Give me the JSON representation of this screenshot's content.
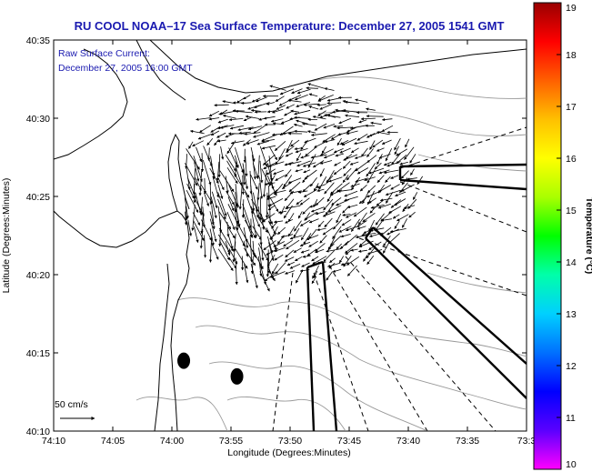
{
  "chart_data": {
    "type": "vector-field",
    "title": "RU COOL  NOAA–17  Sea Surface Temperature:  December 27, 2005 1541 GMT",
    "annotation_line1": "Raw Surface Current:",
    "annotation_line2": "December 27, 2005 16:00 GMT",
    "xlabel": "Longitude (Degrees:Minutes)",
    "ylabel": "Latitude (Degrees:Minutes)",
    "xlim": [
      -74.1667,
      -73.5
    ],
    "ylim": [
      40.1667,
      40.5833
    ],
    "x_ticks": [
      "74:10",
      "74:05",
      "74:00",
      "73:55",
      "73:50",
      "73:45",
      "73:40",
      "73:35",
      "73:3"
    ],
    "y_ticks": [
      "40:35",
      "40:30",
      "40:25",
      "40:20",
      "40:15",
      "40:10"
    ],
    "scale_label": "50 cm/s",
    "colorbar": {
      "label": "Temperature (°C)",
      "min": 10,
      "max": 19,
      "ticks": [
        "19",
        "18",
        "17",
        "16",
        "15",
        "14",
        "13",
        "12",
        "11",
        "10"
      ],
      "colors": [
        "#ff00ff",
        "#5a00ff",
        "#0000ff",
        "#0070ff",
        "#00d0ff",
        "#00ffaa",
        "#00ff00",
        "#aaff00",
        "#ffff00",
        "#ffc000",
        "#ff6000",
        "#ff0000",
        "#990000"
      ]
    },
    "stations": [
      {
        "lon": -73.9833,
        "lat": 40.2417
      },
      {
        "lon": -73.9083,
        "lat": 40.225
      }
    ],
    "grid": false
  }
}
